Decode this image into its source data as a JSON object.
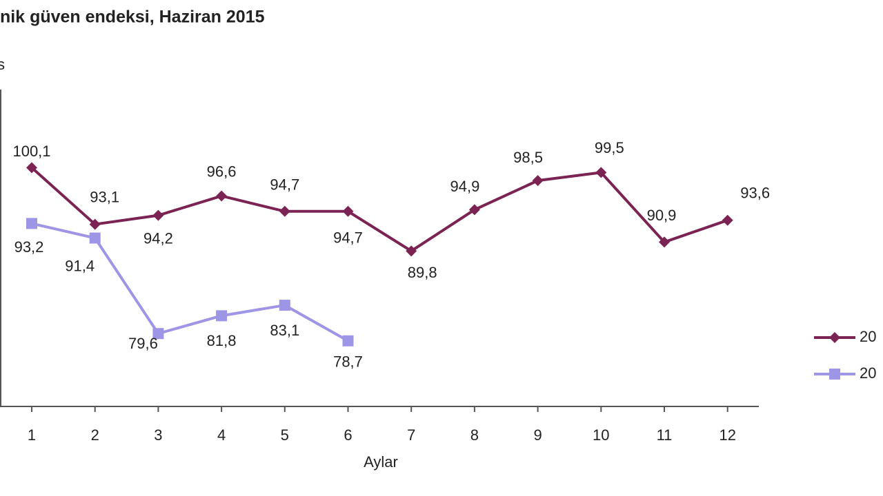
{
  "chart_data": {
    "type": "line",
    "title": "nik güven endeksi, Haziran 2015",
    "y_label": "s",
    "x_label": "Aylar",
    "categories": [
      "1",
      "2",
      "3",
      "4",
      "5",
      "6",
      "7",
      "8",
      "9",
      "10",
      "11",
      "12"
    ],
    "series": [
      {
        "name": "20",
        "color": "#7b2352",
        "marker": "diamond",
        "values": [
          100.1,
          93.1,
          94.2,
          96.6,
          94.7,
          94.7,
          89.8,
          94.9,
          98.5,
          99.5,
          90.9,
          93.6
        ],
        "value_labels": [
          "100,1",
          "93,1",
          "94,2",
          "96,6",
          "94,7",
          "94,7",
          "89,8",
          "94,9",
          "98,5",
          "99,5",
          "90,9",
          "93,6"
        ]
      },
      {
        "name": "20",
        "color": "#9d95e6",
        "marker": "square",
        "values": [
          93.2,
          91.4,
          79.6,
          81.8,
          83.1,
          78.7,
          null,
          null,
          null,
          null,
          null,
          null
        ],
        "value_labels": [
          "93,2",
          "91,4",
          "79,6",
          "81,8",
          "83,1",
          "78,7",
          null,
          null,
          null,
          null,
          null,
          null
        ]
      }
    ],
    "ylim": [
      70,
      110
    ]
  }
}
